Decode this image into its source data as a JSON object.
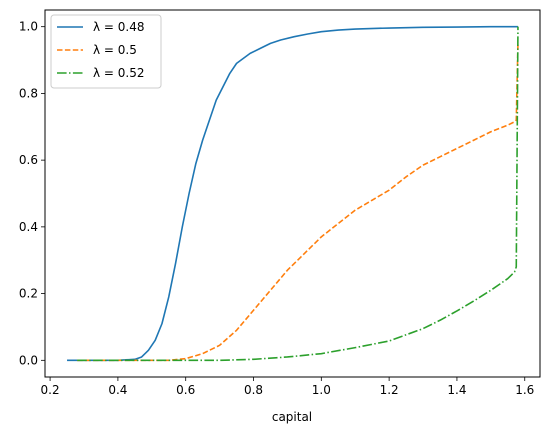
{
  "chart_data": {
    "type": "line",
    "xlabel": "capital",
    "ylabel": "",
    "xlim": [
      0.185,
      1.645
    ],
    "ylim": [
      -0.05,
      1.05
    ],
    "xticks": [
      0.2,
      0.4,
      0.6,
      0.8,
      1.0,
      1.2,
      1.4,
      1.6
    ],
    "xtick_labels": [
      "0.2",
      "0.4",
      "0.6",
      "0.8",
      "1.0",
      "1.2",
      "1.4",
      "1.6"
    ],
    "yticks": [
      0.0,
      0.2,
      0.4,
      0.6,
      0.8,
      1.0
    ],
    "ytick_labels": [
      "0.0",
      "0.2",
      "0.4",
      "0.6",
      "0.8",
      "1.0"
    ],
    "grid": false,
    "legend_position": "top-left",
    "series": [
      {
        "name": "λ = 0.48",
        "color": "#1f77b4",
        "dash": "solid",
        "x": [
          0.25,
          0.4,
          0.45,
          0.47,
          0.49,
          0.51,
          0.53,
          0.55,
          0.57,
          0.59,
          0.61,
          0.63,
          0.65,
          0.67,
          0.69,
          0.71,
          0.73,
          0.75,
          0.77,
          0.79,
          0.82,
          0.85,
          0.88,
          0.92,
          0.96,
          1.0,
          1.05,
          1.1,
          1.2,
          1.3,
          1.4,
          1.5,
          1.58
        ],
        "y": [
          0.0,
          0.0,
          0.003,
          0.01,
          0.03,
          0.06,
          0.11,
          0.19,
          0.29,
          0.4,
          0.5,
          0.59,
          0.66,
          0.72,
          0.78,
          0.82,
          0.86,
          0.89,
          0.905,
          0.92,
          0.935,
          0.95,
          0.96,
          0.97,
          0.978,
          0.985,
          0.99,
          0.993,
          0.996,
          0.998,
          0.999,
          1.0,
          1.0
        ]
      },
      {
        "name": "λ = 0.5",
        "color": "#ff7f0e",
        "dash": "dashed",
        "x": [
          0.28,
          0.5,
          0.55,
          0.6,
          0.65,
          0.7,
          0.75,
          0.8,
          0.85,
          0.9,
          0.95,
          1.0,
          1.05,
          1.1,
          1.15,
          1.2,
          1.25,
          1.3,
          1.35,
          1.4,
          1.45,
          1.5,
          1.55,
          1.57,
          1.575,
          1.58
        ],
        "y": [
          0.0,
          0.0,
          0.0,
          0.005,
          0.02,
          0.045,
          0.09,
          0.15,
          0.21,
          0.27,
          0.32,
          0.37,
          0.41,
          0.45,
          0.48,
          0.51,
          0.55,
          0.585,
          0.61,
          0.635,
          0.66,
          0.685,
          0.705,
          0.715,
          0.72,
          0.95
        ]
      },
      {
        "name": "λ = 0.52",
        "color": "#2ca02c",
        "dash": "dashdot",
        "x": [
          0.28,
          0.7,
          0.8,
          0.9,
          1.0,
          1.1,
          1.2,
          1.3,
          1.35,
          1.4,
          1.45,
          1.5,
          1.55,
          1.57,
          1.575,
          1.58
        ],
        "y": [
          0.0,
          0.0,
          0.003,
          0.01,
          0.02,
          0.038,
          0.058,
          0.095,
          0.12,
          0.148,
          0.178,
          0.21,
          0.245,
          0.265,
          0.28,
          1.0
        ]
      }
    ]
  }
}
